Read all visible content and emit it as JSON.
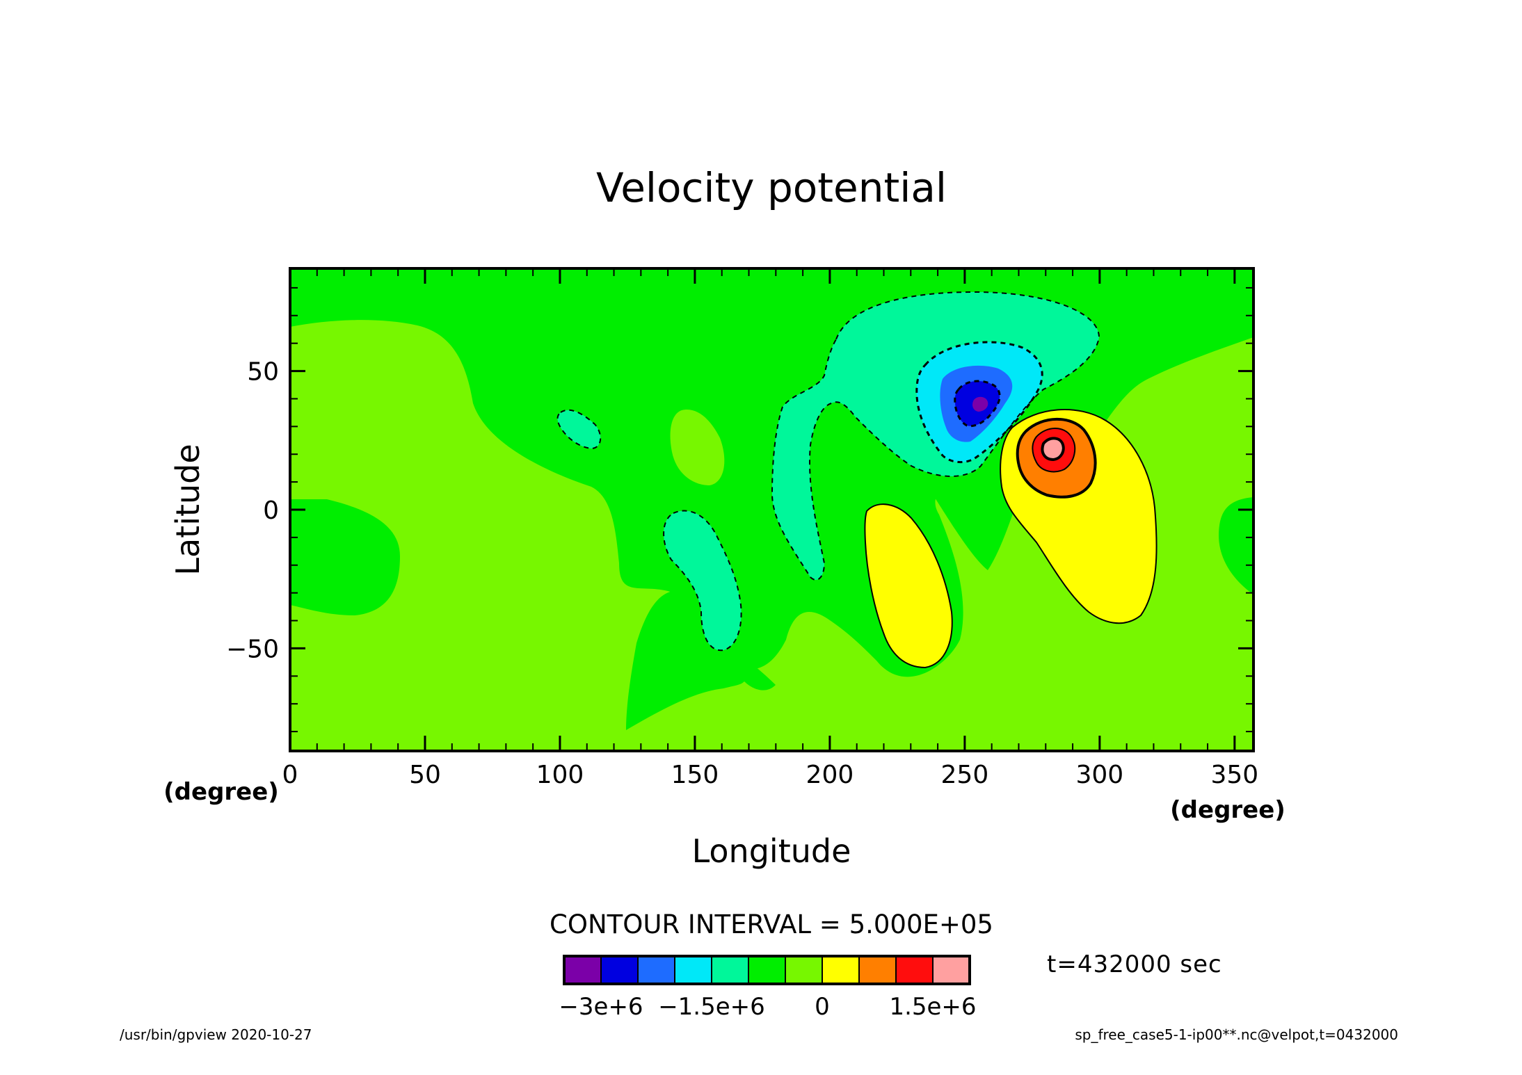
{
  "chart_data": {
    "type": "contour",
    "title": "Velocity potential",
    "xlabel": "Longitude",
    "ylabel": "Latitude",
    "x_unit": "(degree)",
    "y_unit": "(degree)",
    "xlim": [
      0,
      357
    ],
    "ylim": [
      -87,
      87
    ],
    "x_ticks": [
      0,
      50,
      100,
      150,
      200,
      250,
      300,
      350
    ],
    "x_tick_labels": [
      "0",
      "50",
      "100",
      "150",
      "200",
      "250",
      "300",
      "350"
    ],
    "y_ticks": [
      -50,
      0,
      50
    ],
    "y_tick_labels": [
      "−50",
      "0",
      "50"
    ],
    "contour_interval_text": "CONTOUR INTERVAL = 5.000E+05",
    "contour_interval": 500000,
    "levels": [
      -3000000,
      -2500000,
      -2000000,
      -1500000,
      -1000000,
      -500000,
      0,
      500000,
      1000000,
      1500000,
      2000000,
      2500000
    ],
    "colorbar": {
      "colors": [
        "#7b00a8",
        "#0000e0",
        "#1e6cff",
        "#00e8f8",
        "#00f79a",
        "#00ee00",
        "#77f700",
        "#ffff00",
        "#ff7f00",
        "#ff0d0d",
        "#ffa0a0"
      ],
      "tick_labels": [
        "−3e+6",
        "−1.5e+6",
        "0",
        "1.5e+6"
      ]
    },
    "features": [
      {
        "kind": "minimum",
        "lon": 258,
        "lat": 39,
        "value_approx": -3000000
      },
      {
        "kind": "maximum",
        "lon": 283,
        "lat": 22,
        "value_approx": 2800000
      },
      {
        "kind": "positive lobe",
        "lon": 230,
        "lat": -25,
        "value_approx": 700000
      },
      {
        "kind": "negative lobe",
        "lon": 150,
        "lat": -25,
        "value_approx": -600000
      },
      {
        "kind": "negative lobe",
        "lon": 108,
        "lat": 30,
        "value_approx": -600000
      }
    ]
  },
  "time_label": "t=432000 sec",
  "footer": {
    "left": "/usr/bin/gpview   2020-10-27",
    "right": "sp_free_case5-1-ip00**.nc@velpot,t=0432000"
  }
}
